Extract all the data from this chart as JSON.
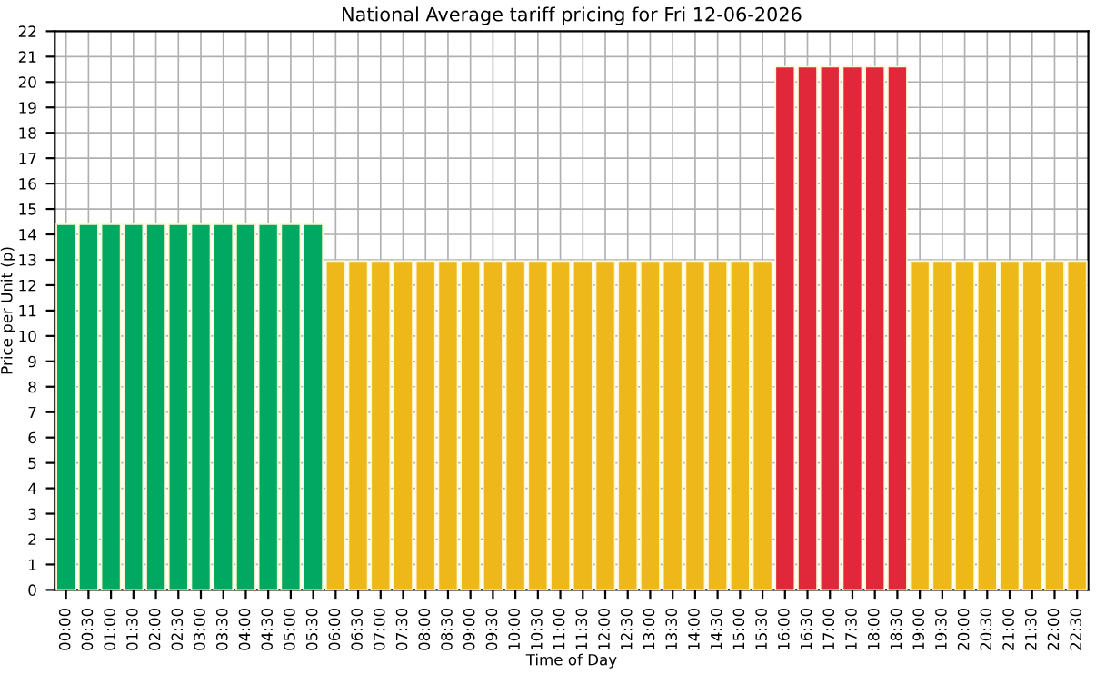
{
  "chart_data": {
    "type": "bar",
    "title": "National Average tariff pricing for Fri 12-06-2026",
    "xlabel": "Time of Day",
    "ylabel": "Price per Unit (p)",
    "categories": [
      "00:00",
      "00:30",
      "01:00",
      "01:30",
      "02:00",
      "02:30",
      "03:00",
      "03:30",
      "04:00",
      "04:30",
      "05:00",
      "05:30",
      "06:00",
      "06:30",
      "07:00",
      "07:30",
      "08:00",
      "08:30",
      "09:00",
      "09:30",
      "10:00",
      "10:30",
      "11:00",
      "11:30",
      "12:00",
      "12:30",
      "13:00",
      "13:30",
      "14:00",
      "14:30",
      "15:00",
      "15:30",
      "16:00",
      "16:30",
      "17:00",
      "17:30",
      "18:00",
      "18:30",
      "19:00",
      "19:30",
      "20:00",
      "20:30",
      "21:00",
      "21:30",
      "22:00",
      "22:30"
    ],
    "values": [
      14.4,
      14.4,
      14.4,
      14.4,
      14.4,
      14.4,
      14.4,
      14.4,
      14.4,
      14.4,
      14.4,
      14.4,
      12.95,
      12.95,
      12.95,
      12.95,
      12.95,
      12.95,
      12.95,
      12.95,
      12.95,
      12.95,
      12.95,
      12.95,
      12.95,
      12.95,
      12.95,
      12.95,
      12.95,
      12.95,
      12.95,
      12.95,
      20.6,
      20.6,
      20.6,
      20.6,
      20.6,
      20.6,
      12.95,
      12.95,
      12.95,
      12.95,
      12.95,
      12.95,
      12.95,
      12.95
    ],
    "colors": [
      "#00a862",
      "#00a862",
      "#00a862",
      "#00a862",
      "#00a862",
      "#00a862",
      "#00a862",
      "#00a862",
      "#00a862",
      "#00a862",
      "#00a862",
      "#00a862",
      "#efb81a",
      "#efb81a",
      "#efb81a",
      "#efb81a",
      "#efb81a",
      "#efb81a",
      "#efb81a",
      "#efb81a",
      "#efb81a",
      "#efb81a",
      "#efb81a",
      "#efb81a",
      "#efb81a",
      "#efb81a",
      "#efb81a",
      "#efb81a",
      "#efb81a",
      "#efb81a",
      "#efb81a",
      "#efb81a",
      "#e0283a",
      "#e0283a",
      "#e0283a",
      "#e0283a",
      "#e0283a",
      "#e0283a",
      "#efb81a",
      "#efb81a",
      "#efb81a",
      "#efb81a",
      "#efb81a",
      "#efb81a",
      "#efb81a",
      "#efb81a"
    ],
    "ylim": [
      0,
      22
    ],
    "yticks": [
      0,
      1,
      2,
      3,
      4,
      5,
      6,
      7,
      8,
      9,
      10,
      11,
      12,
      13,
      14,
      15,
      16,
      17,
      18,
      19,
      20,
      21,
      22
    ],
    "grid": true,
    "legend": false
  }
}
